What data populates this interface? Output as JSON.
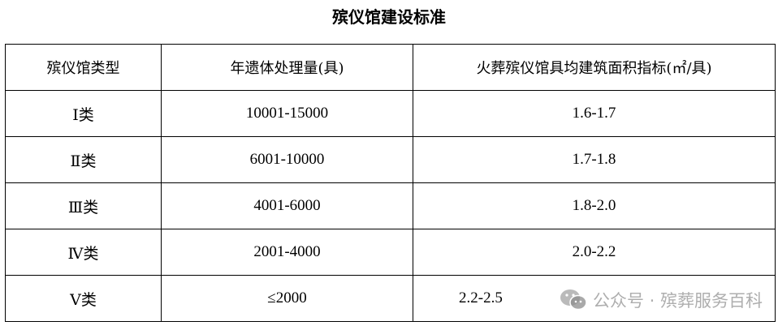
{
  "title": "殡仪馆建设标准",
  "table": {
    "headers": [
      "殡仪馆类型",
      "年遗体处理量(具)",
      "火葬殡仪馆具均建筑面积指标(㎡/具)"
    ],
    "rows": [
      [
        "Ⅰ类",
        "10001-15000",
        "1.6-1.7"
      ],
      [
        "Ⅱ类",
        "6001-10000",
        "1.7-1.8"
      ],
      [
        "Ⅲ类",
        "4001-6000",
        "1.8-2.0"
      ],
      [
        "Ⅳ类",
        "2001-4000",
        "2.0-2.2"
      ],
      [
        "Ⅴ类",
        "≤2000",
        "2.2-2.5"
      ]
    ]
  },
  "watermark": {
    "text": "公众号 · 殡葬服务百科",
    "icon": "wechat-icon"
  }
}
